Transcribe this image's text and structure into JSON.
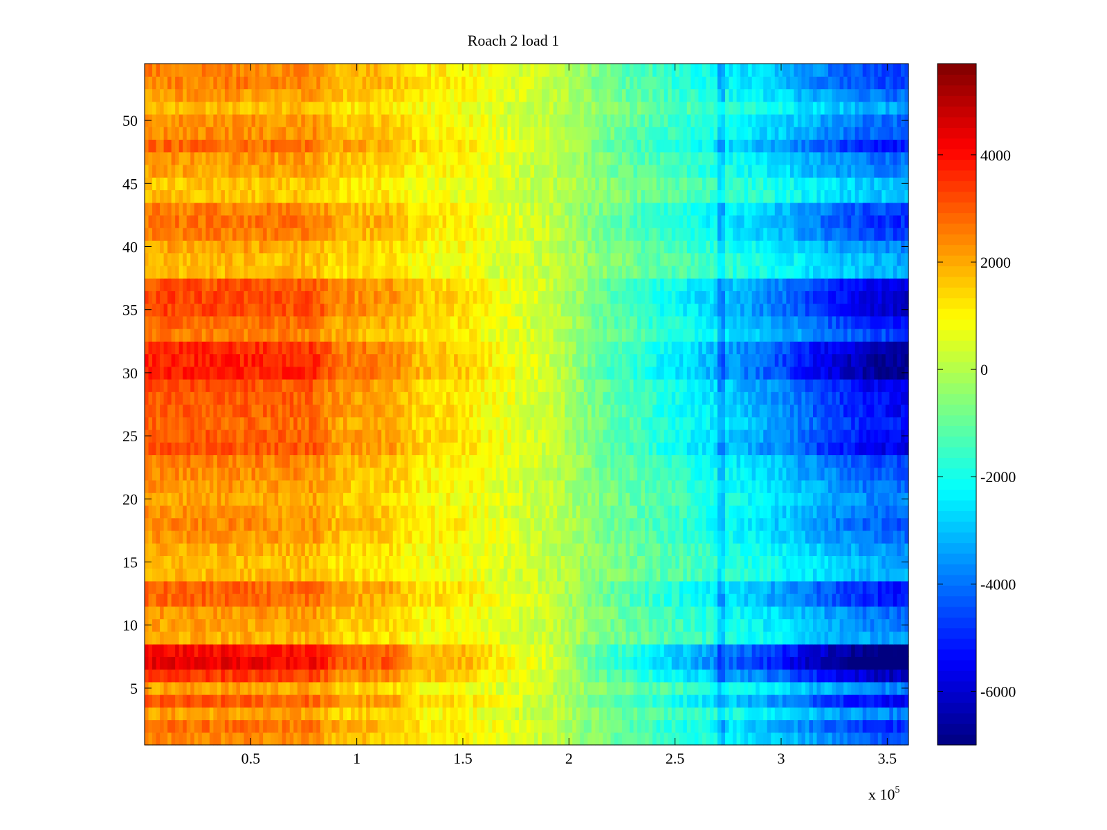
{
  "chart_data": {
    "type": "heatmap",
    "title": "Roach 2 load 1",
    "xlabel": "",
    "ylabel": "",
    "x_exponent_label": "x 10",
    "x_exponent_power": "5",
    "xlim": [
      0,
      360000
    ],
    "ylim": [
      0.5,
      54.5
    ],
    "x_ticks": [
      50000,
      100000,
      150000,
      200000,
      250000,
      300000,
      350000
    ],
    "x_tick_labels": [
      "0.5",
      "1",
      "1.5",
      "2",
      "2.5",
      "3",
      "3.5"
    ],
    "y_ticks": [
      5,
      10,
      15,
      20,
      25,
      30,
      35,
      40,
      45,
      50
    ],
    "y_tick_labels": [
      "5",
      "10",
      "15",
      "20",
      "25",
      "30",
      "35",
      "40",
      "45",
      "50"
    ],
    "colorbar": {
      "colormap": "jet",
      "clim": [
        -7000,
        5700
      ],
      "ticks": [
        4000,
        2000,
        0,
        -2000,
        -4000,
        -6000
      ],
      "tick_labels": [
        "4000",
        "2000",
        "0",
        "-2000",
        "-4000",
        "-6000"
      ]
    },
    "grid": false,
    "rows": 54,
    "x_sample_points": [
      0,
      20000,
      40000,
      60000,
      80000,
      90000,
      100000,
      115000,
      130000,
      150000,
      170000,
      190000,
      203000,
      215000,
      240000,
      270000,
      300000,
      320000,
      340000,
      360000
    ],
    "row_profile_base": [
      3000,
      3000,
      3000,
      2900,
      2900,
      2200,
      2100,
      2100,
      1400,
      1300,
      700,
      300,
      -300,
      -900,
      -1700,
      -2600,
      -3600,
      -4500,
      -5200,
      -5500
    ],
    "row_amplitude": [
      0.8,
      0.9,
      0.7,
      1.0,
      0.7,
      1.15,
      1.45,
      1.35,
      0.65,
      0.7,
      0.75,
      0.95,
      0.95,
      0.6,
      0.6,
      0.65,
      0.75,
      0.8,
      0.75,
      0.7,
      0.75,
      0.8,
      0.85,
      1.05,
      1.0,
      0.95,
      1.0,
      1.0,
      1.05,
      1.25,
      1.25,
      1.2,
      0.85,
      0.95,
      1.1,
      1.1,
      1.05,
      0.6,
      0.6,
      0.7,
      0.85,
      0.9,
      0.85,
      0.55,
      0.55,
      0.7,
      0.75,
      0.95,
      0.8,
      0.75,
      0.6,
      0.75,
      0.85,
      0.85
    ],
    "texture_noise": 450,
    "dark_column_x": 272000
  }
}
